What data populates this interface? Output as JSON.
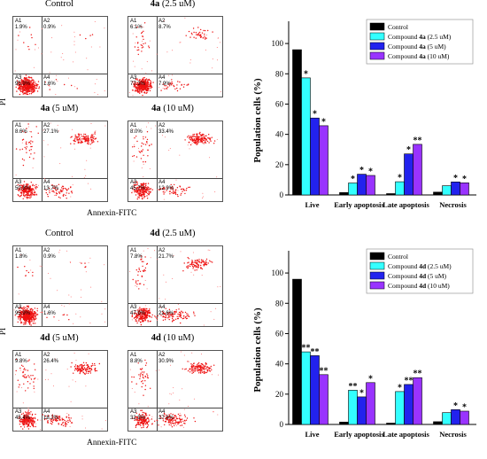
{
  "panels": [
    {
      "id": "top",
      "flow": {
        "x_label": "Annexin-FITC",
        "y_label": "PI",
        "plots": [
          {
            "title_plain": "Control",
            "title_bold": "",
            "title_suffix": "",
            "q": {
              "A1": "1.9%",
              "A2": "0.9%",
              "A3": "95.9%",
              "A4": "1.6%"
            }
          },
          {
            "title_plain": "",
            "title_bold": "4a",
            "title_suffix": " (2.5 uM)",
            "q": {
              "A1": "6.1%",
              "A2": "8.7%",
              "A3": "77.3%",
              "A4": "7.9%"
            }
          },
          {
            "title_plain": "",
            "title_bold": "4a",
            "title_suffix": " (5 uM)",
            "q": {
              "A1": "8.6%",
              "A2": "27.1%",
              "A3": "50.8%",
              "A4": "13.7%"
            }
          },
          {
            "title_plain": "",
            "title_bold": "4a",
            "title_suffix": " (10 uM)",
            "q": {
              "A1": "8.0%",
              "A2": "33.4%",
              "A3": "45.7%",
              "A4": "12.9%"
            }
          }
        ]
      },
      "chart_data": {
        "type": "bar",
        "ylabel": "Population cells (%)",
        "xlabel": "",
        "ylim": [
          0,
          110
        ],
        "yticks": [
          "0",
          "20",
          "40",
          "60",
          "80",
          "100"
        ],
        "categories": [
          "Live",
          "Early apoptosis",
          "Late apoptosis",
          "Necrosis"
        ],
        "series": [
          {
            "name_prefix": "Control",
            "name_bold": "",
            "name_suffix": "",
            "color": "#000000",
            "values": [
              95.9,
              1.6,
              0.9,
              1.9
            ],
            "marks": [
              "",
              "",
              "",
              ""
            ]
          },
          {
            "name_prefix": "Compound ",
            "name_bold": "4a",
            "name_suffix": " (2.5 uM)",
            "color": "#33ffff",
            "values": [
              77.3,
              7.9,
              8.7,
              6.1
            ],
            "marks": [
              "*",
              "*",
              "*",
              ""
            ]
          },
          {
            "name_prefix": "Compound ",
            "name_bold": "4a",
            "name_suffix": " (5 uM)",
            "color": "#2222ee",
            "values": [
              50.8,
              13.7,
              27.1,
              8.6
            ],
            "marks": [
              "*",
              "*",
              "*",
              "*"
            ]
          },
          {
            "name_prefix": "Compound ",
            "name_bold": "4a",
            "name_suffix": " (10 uM)",
            "color": "#9933ff",
            "values": [
              45.7,
              12.9,
              33.4,
              8.0
            ],
            "marks": [
              "*",
              "*",
              "**",
              "*"
            ]
          }
        ]
      }
    },
    {
      "id": "bottom",
      "flow": {
        "x_label": "Annexin-FITC",
        "y_label": "PI",
        "plots": [
          {
            "title_plain": "Control",
            "title_bold": "",
            "title_suffix": "",
            "q": {
              "A1": "1.8%",
              "A2": "0.9%",
              "A3": "95.9%",
              "A4": "1.6%"
            }
          },
          {
            "title_plain": "",
            "title_bold": "4d",
            "title_suffix": " (2.5 uM)",
            "q": {
              "A1": "7.8%",
              "A2": "21.7%",
              "A3": "47.9%",
              "A4": "22.6%"
            }
          },
          {
            "title_plain": "",
            "title_bold": "4d",
            "title_suffix": " (5 uM)",
            "q": {
              "A1": "9.8%",
              "A2": "26.4%",
              "A3": "45.4%",
              "A4": "18.2%"
            }
          },
          {
            "title_plain": "",
            "title_bold": "4d",
            "title_suffix": " (10 uM)",
            "q": {
              "A1": "8.8%",
              "A2": "30.9%",
              "A3": "32.9%",
              "A4": "27.6%"
            }
          }
        ]
      },
      "chart_data": {
        "type": "bar",
        "ylabel": "Population cells (%)",
        "xlabel": "",
        "ylim": [
          0,
          110
        ],
        "yticks": [
          "0",
          "20",
          "40",
          "60",
          "80",
          "100"
        ],
        "categories": [
          "Live",
          "Early apoptosis",
          "Late apoptosis",
          "Necrosis"
        ],
        "series": [
          {
            "name_prefix": "Control",
            "name_bold": "",
            "name_suffix": "",
            "color": "#000000",
            "values": [
              95.9,
              1.6,
              0.9,
              1.8
            ],
            "marks": [
              "",
              "",
              "",
              ""
            ]
          },
          {
            "name_prefix": "Compound ",
            "name_bold": "4d",
            "name_suffix": " (2.5 uM)",
            "color": "#33ffff",
            "values": [
              47.9,
              22.6,
              21.7,
              7.8
            ],
            "marks": [
              "**",
              "**",
              "*",
              ""
            ]
          },
          {
            "name_prefix": "Compound ",
            "name_bold": "4d",
            "name_suffix": " (5 uM)",
            "color": "#2222ee",
            "values": [
              45.4,
              18.2,
              26.4,
              9.8
            ],
            "marks": [
              "**",
              "*",
              "**",
              "*"
            ]
          },
          {
            "name_prefix": "Compound ",
            "name_bold": "4d",
            "name_suffix": " (10 uM)",
            "color": "#9933ff",
            "values": [
              32.9,
              27.6,
              30.9,
              8.8
            ],
            "marks": [
              "**",
              "*",
              "**",
              "*"
            ]
          }
        ]
      }
    }
  ]
}
